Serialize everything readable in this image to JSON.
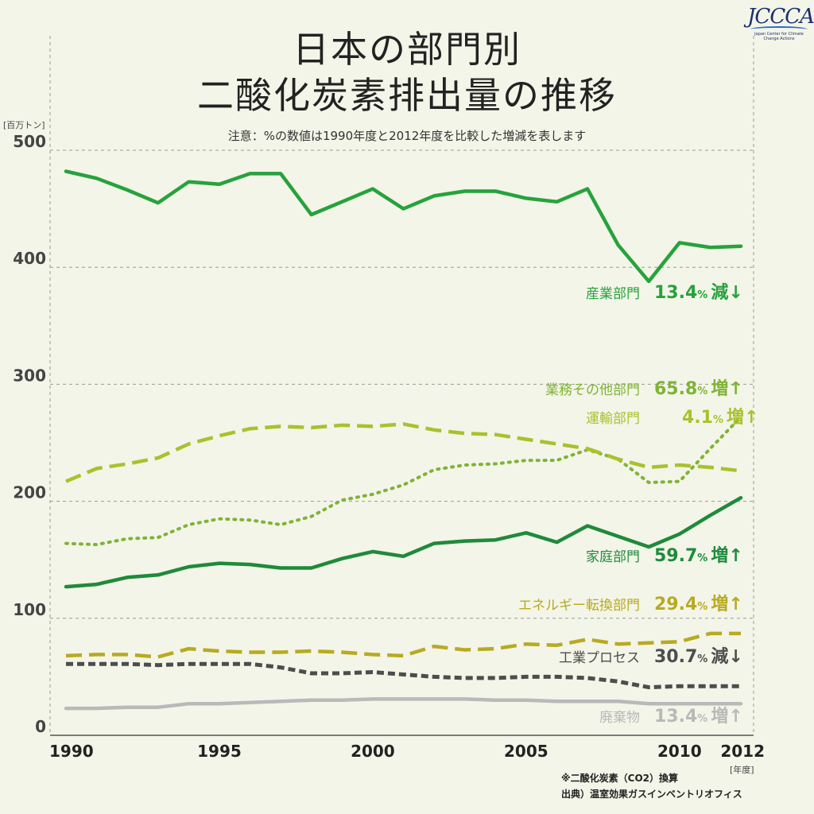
{
  "logo": {
    "text": "JCCCA",
    "subtitle": "Japan Center for Climate Change Actions"
  },
  "title_line1": "日本の部門別",
  "title_line2": "二酸化炭素排出量の推移",
  "note": "注意：%の数値は1990年度と2012年度を比較した増減を表します",
  "y_unit": "[百万トン]",
  "x_unit": "[年度]",
  "footer_line1": "※二酸化炭素（CO2）換算",
  "footer_line2": "出典）温室効果ガスインベントリオフィス",
  "colors": {
    "industry": "#27a23c",
    "commercial": "#7fb336",
    "transport": "#a9c12e",
    "household": "#1f8a3b",
    "energy": "#b8aa22",
    "process": "#4d4d4d",
    "waste": "#b9b9b9"
  },
  "chart_data": {
    "type": "line",
    "x": [
      1990,
      1991,
      1992,
      1993,
      1994,
      1995,
      1996,
      1997,
      1998,
      1999,
      2000,
      2001,
      2002,
      2003,
      2004,
      2005,
      2006,
      2007,
      2008,
      2009,
      2010,
      2011,
      2012
    ],
    "x_ticks": [
      1990,
      1995,
      2000,
      2005,
      2010,
      2012
    ],
    "y_ticks": [
      0,
      100,
      200,
      300,
      400,
      500
    ],
    "ylim": [
      0,
      500
    ],
    "xlim": [
      1990,
      2012
    ],
    "grid": true,
    "series": [
      {
        "name": "産業部門",
        "pct": "13.4",
        "dir": "減",
        "arrow": "↓",
        "color_key": "industry",
        "dash": "solid",
        "values": [
          482,
          476,
          466,
          455,
          473,
          471,
          480,
          480,
          445,
          456,
          467,
          450,
          461,
          465,
          465,
          459,
          456,
          467,
          419,
          388,
          421,
          417,
          418
        ]
      },
      {
        "name": "業務その他部門",
        "pct": "65.8",
        "dir": "増",
        "arrow": "↑",
        "color_key": "commercial",
        "dash": "dotted",
        "values": [
          164,
          163,
          168,
          169,
          180,
          185,
          184,
          180,
          187,
          201,
          206,
          214,
          227,
          231,
          232,
          235,
          235,
          244,
          236,
          216,
          217,
          245,
          272
        ]
      },
      {
        "name": "運輸部門",
        "pct": "4.1",
        "dir": "増",
        "arrow": "↑",
        "color_key": "transport",
        "dash": "dashed",
        "values": [
          217,
          228,
          232,
          237,
          249,
          256,
          262,
          264,
          263,
          265,
          264,
          266,
          261,
          258,
          257,
          253,
          249,
          245,
          236,
          229,
          231,
          229,
          226
        ]
      },
      {
        "name": "家庭部門",
        "pct": "59.7",
        "dir": "増",
        "arrow": "↑",
        "color_key": "household",
        "dash": "solid",
        "values": [
          127,
          129,
          135,
          137,
          144,
          147,
          146,
          143,
          143,
          151,
          157,
          153,
          164,
          166,
          167,
          173,
          165,
          179,
          170,
          161,
          172,
          188,
          203
        ]
      },
      {
        "name": "エネルギー転換部門",
        "pct": "29.4",
        "dir": "増",
        "arrow": "↑",
        "color_key": "energy",
        "dash": "dashed",
        "values": [
          68,
          69,
          69,
          67,
          74,
          72,
          71,
          71,
          72,
          71,
          69,
          68,
          76,
          73,
          74,
          78,
          77,
          82,
          78,
          79,
          80,
          87,
          87
        ]
      },
      {
        "name": "工業プロセス",
        "pct": "30.7",
        "dir": "減",
        "arrow": "↓",
        "color_key": "process",
        "dash": "dashed-dark",
        "values": [
          61,
          61,
          61,
          60,
          61,
          61,
          61,
          58,
          53,
          53,
          54,
          52,
          50,
          49,
          49,
          50,
          50,
          49,
          46,
          41,
          42,
          42,
          42
        ]
      },
      {
        "name": "廃棄物",
        "pct": "13.4",
        "dir": "増",
        "arrow": "↑",
        "color_key": "waste",
        "dash": "solid",
        "values": [
          23,
          23,
          24,
          24,
          27,
          27,
          28,
          29,
          30,
          30,
          31,
          31,
          31,
          31,
          30,
          30,
          29,
          29,
          29,
          27,
          27,
          27,
          27
        ]
      }
    ]
  }
}
